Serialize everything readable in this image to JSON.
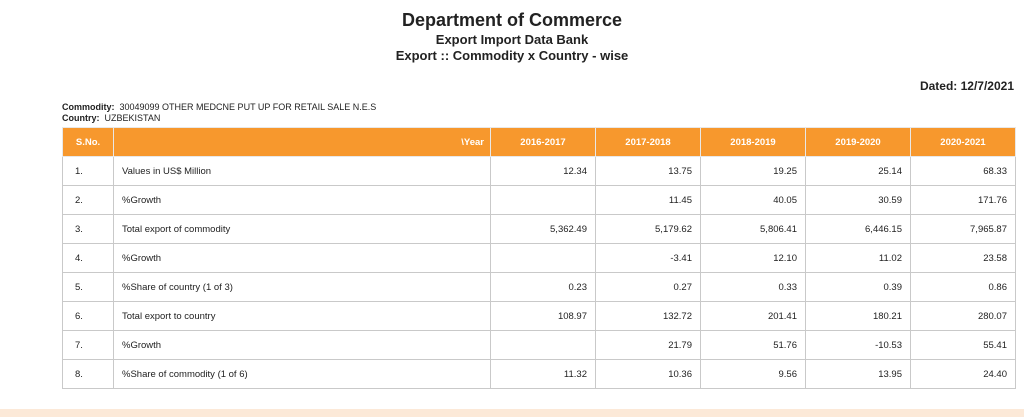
{
  "header": {
    "title": "Department of Commerce",
    "subtitle": "Export Import Data Bank",
    "subtitle2": "Export :: Commodity x Country - wise"
  },
  "dated": "Dated: 12/7/2021",
  "meta": {
    "commodity_label": "Commodity:",
    "commodity_value": "30049099 OTHER MEDCNE PUT UP FOR RETAIL SALE N.E.S",
    "country_label": "Country:",
    "country_value": "UZBEKISTAN"
  },
  "table": {
    "headers": {
      "sno": "S.No.",
      "desc": "\\Year",
      "years": [
        "2016-2017",
        "2017-2018",
        "2018-2019",
        "2019-2020",
        "2020-2021"
      ]
    },
    "rows": [
      {
        "sno": "1.",
        "desc": "Values in US$ Million",
        "vals": [
          "12.34",
          "13.75",
          "19.25",
          "25.14",
          "68.33"
        ]
      },
      {
        "sno": "2.",
        "desc": "%Growth",
        "vals": [
          "",
          "11.45",
          "40.05",
          "30.59",
          "171.76"
        ]
      },
      {
        "sno": "3.",
        "desc": "Total export of commodity",
        "vals": [
          "5,362.49",
          "5,179.62",
          "5,806.41",
          "6,446.15",
          "7,965.87"
        ]
      },
      {
        "sno": "4.",
        "desc": "%Growth",
        "vals": [
          "",
          "-3.41",
          "12.10",
          "11.02",
          "23.58"
        ]
      },
      {
        "sno": "5.",
        "desc": "%Share of country (1 of 3)",
        "vals": [
          "0.23",
          "0.27",
          "0.33",
          "0.39",
          "0.86"
        ]
      },
      {
        "sno": "6.",
        "desc": "Total export to country",
        "vals": [
          "108.97",
          "132.72",
          "201.41",
          "180.21",
          "280.07"
        ]
      },
      {
        "sno": "7.",
        "desc": "%Growth",
        "vals": [
          "",
          "21.79",
          "51.76",
          "-10.53",
          "55.41"
        ]
      },
      {
        "sno": "8.",
        "desc": "%Share of commodity (1 of 6)",
        "vals": [
          "11.32",
          "10.36",
          "9.56",
          "13.95",
          "24.40"
        ]
      }
    ]
  }
}
